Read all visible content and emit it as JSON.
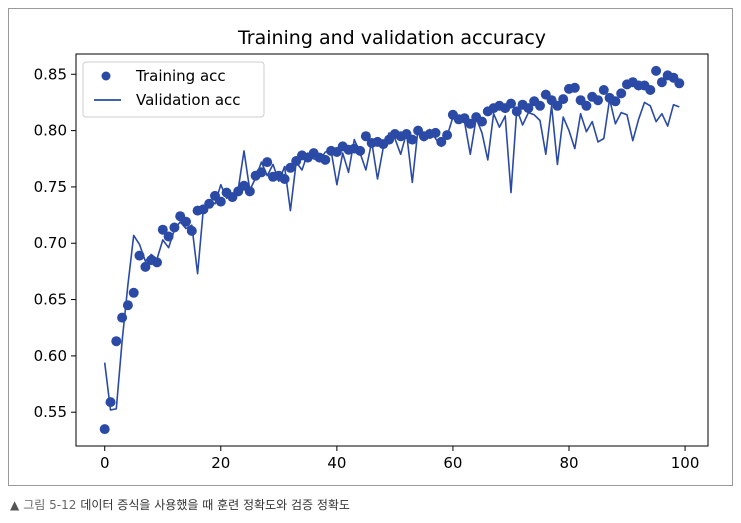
{
  "caption": {
    "figure_no": "그림 5-12",
    "text": "데이터 증식을 사용했을 때 훈련 정확도와 검증 정확도"
  },
  "chart_data": {
    "type": "line",
    "title": "Training and validation accuracy",
    "xlabel": "",
    "ylabel": "",
    "xlim": [
      -4.95,
      103.95
    ],
    "ylim": [
      0.52,
      0.868
    ],
    "xticks": [
      0,
      20,
      40,
      60,
      80,
      100
    ],
    "yticks": [
      0.55,
      0.6,
      0.65,
      0.7,
      0.75,
      0.8,
      0.85
    ],
    "ytick_labels": [
      "0.55",
      "0.60",
      "0.65",
      "0.70",
      "0.75",
      "0.80",
      "0.85"
    ],
    "legend_position": "upper-left",
    "grid": false,
    "color": "#2a4aa6",
    "series": [
      {
        "name": "Training acc",
        "style": "dots",
        "values": [
          0.535,
          0.559,
          0.613,
          0.634,
          0.645,
          0.656,
          0.689,
          0.679,
          0.685,
          0.683,
          0.712,
          0.706,
          0.714,
          0.724,
          0.719,
          0.711,
          0.729,
          0.73,
          0.735,
          0.742,
          0.737,
          0.745,
          0.741,
          0.746,
          0.751,
          0.746,
          0.76,
          0.763,
          0.772,
          0.759,
          0.76,
          0.757,
          0.767,
          0.773,
          0.778,
          0.776,
          0.78,
          0.776,
          0.774,
          0.782,
          0.781,
          0.786,
          0.783,
          0.784,
          0.782,
          0.795,
          0.789,
          0.79,
          0.788,
          0.792,
          0.797,
          0.795,
          0.797,
          0.792,
          0.8,
          0.795,
          0.797,
          0.798,
          0.79,
          0.796,
          0.814,
          0.81,
          0.811,
          0.806,
          0.812,
          0.808,
          0.817,
          0.82,
          0.822,
          0.82,
          0.824,
          0.817,
          0.823,
          0.82,
          0.826,
          0.822,
          0.832,
          0.827,
          0.822,
          0.828,
          0.837,
          0.838,
          0.827,
          0.822,
          0.83,
          0.827,
          0.836,
          0.829,
          0.826,
          0.833,
          0.841,
          0.843,
          0.84,
          0.84,
          0.836,
          0.853,
          0.843,
          0.849,
          0.847,
          0.842
        ]
      },
      {
        "name": "Validation acc",
        "style": "line",
        "values": [
          0.594,
          0.552,
          0.553,
          0.613,
          0.663,
          0.707,
          0.699,
          0.684,
          0.69,
          0.686,
          0.703,
          0.696,
          0.712,
          0.719,
          0.713,
          0.716,
          0.673,
          0.731,
          0.738,
          0.735,
          0.752,
          0.74,
          0.743,
          0.748,
          0.782,
          0.747,
          0.758,
          0.772,
          0.76,
          0.77,
          0.755,
          0.768,
          0.729,
          0.772,
          0.765,
          0.78,
          0.775,
          0.773,
          0.781,
          0.782,
          0.752,
          0.78,
          0.763,
          0.792,
          0.78,
          0.765,
          0.79,
          0.757,
          0.785,
          0.798,
          0.793,
          0.779,
          0.798,
          0.754,
          0.802,
          0.791,
          0.801,
          0.793,
          0.786,
          0.795,
          0.812,
          0.809,
          0.808,
          0.779,
          0.811,
          0.798,
          0.774,
          0.815,
          0.803,
          0.813,
          0.745,
          0.819,
          0.805,
          0.816,
          0.814,
          0.809,
          0.779,
          0.822,
          0.77,
          0.812,
          0.8,
          0.784,
          0.815,
          0.799,
          0.808,
          0.79,
          0.793,
          0.828,
          0.806,
          0.816,
          0.814,
          0.791,
          0.81,
          0.825,
          0.822,
          0.808,
          0.815,
          0.804,
          0.823,
          0.821
        ]
      }
    ]
  }
}
